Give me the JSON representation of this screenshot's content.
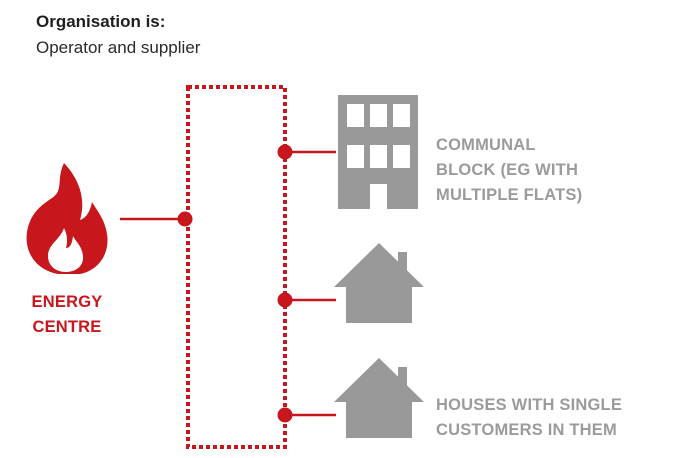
{
  "header": {
    "title": "Organisation is:",
    "subtitle": "Operator and supplier"
  },
  "energy_centre": {
    "label": "ENERGY\nCENTRE",
    "icon": "flame-icon"
  },
  "nodes": [
    {
      "icon": "apartment-building-icon",
      "label": "COMMUNAL\nBLOCK (EG WITH\nMULTIPLE FLATS)"
    },
    {
      "icon": "house-icon",
      "label": ""
    },
    {
      "icon": "house-icon",
      "label": "HOUSES WITH SINGLE\nCUSTOMERS IN THEM"
    }
  ],
  "colors": {
    "accent": "#c8161d",
    "node": "#999999"
  }
}
